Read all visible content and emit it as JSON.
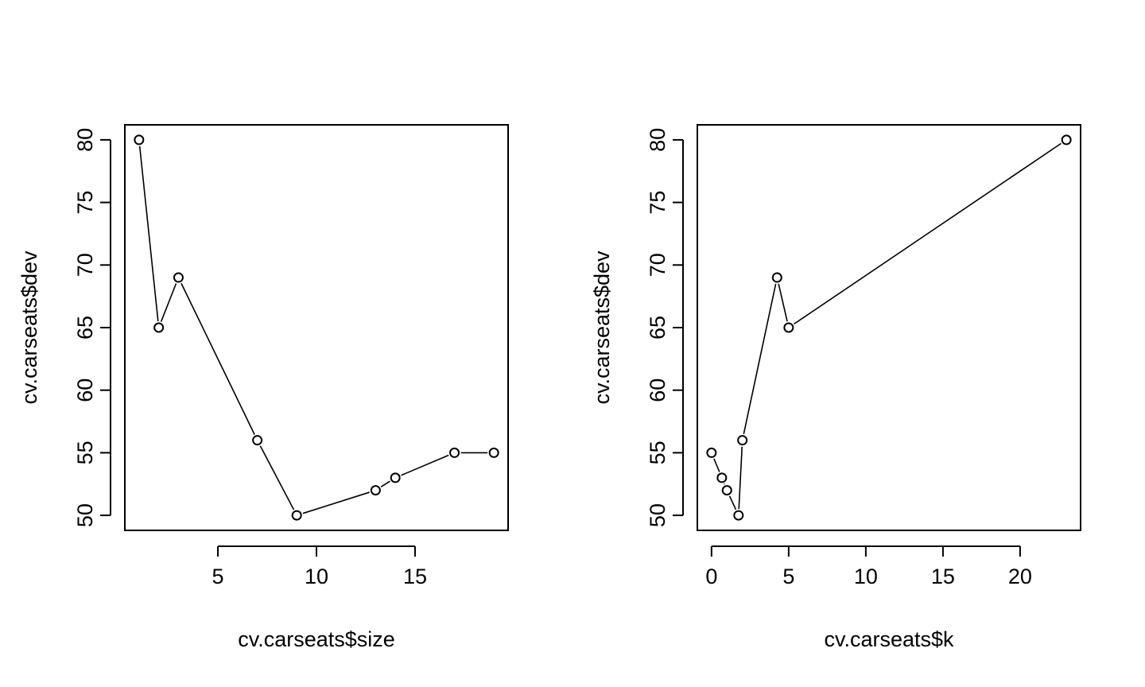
{
  "chart_data": [
    {
      "type": "line",
      "title": "",
      "xlabel": "cv.carseats$size",
      "ylabel": "cv.carseats$dev",
      "x": [
        1,
        2,
        3,
        7,
        9,
        13,
        14,
        17,
        19
      ],
      "y": [
        80,
        65,
        69,
        56,
        50,
        52,
        53,
        55,
        55
      ],
      "xlim": [
        0.28,
        19.72
      ],
      "ylim": [
        48.8,
        81.2
      ],
      "xticks": [
        5,
        10,
        15
      ],
      "yticks": [
        50,
        55,
        60,
        65,
        70,
        75,
        80
      ],
      "marker": "open-circle",
      "line_style": "points-and-lines",
      "grid": false
    },
    {
      "type": "line",
      "title": "",
      "xlabel": "cv.carseats$k",
      "ylabel": "cv.carseats$dev",
      "x": [
        0,
        0.67,
        1,
        1.75,
        2,
        4.25,
        5,
        23
      ],
      "y": [
        55,
        53,
        52,
        50,
        56,
        69,
        65,
        80
      ],
      "xlim": [
        -0.92,
        23.92
      ],
      "ylim": [
        48.8,
        81.2
      ],
      "xticks": [
        0,
        5,
        10,
        15,
        20
      ],
      "yticks": [
        50,
        55,
        60,
        65,
        70,
        75,
        80
      ],
      "marker": "open-circle",
      "line_style": "points-and-lines",
      "grid": false
    }
  ],
  "panels": [
    {
      "xlabel": "cv.carseats$size",
      "ylabel": "cv.carseats$dev"
    },
    {
      "xlabel": "cv.carseats$k",
      "ylabel": "cv.carseats$dev"
    }
  ]
}
